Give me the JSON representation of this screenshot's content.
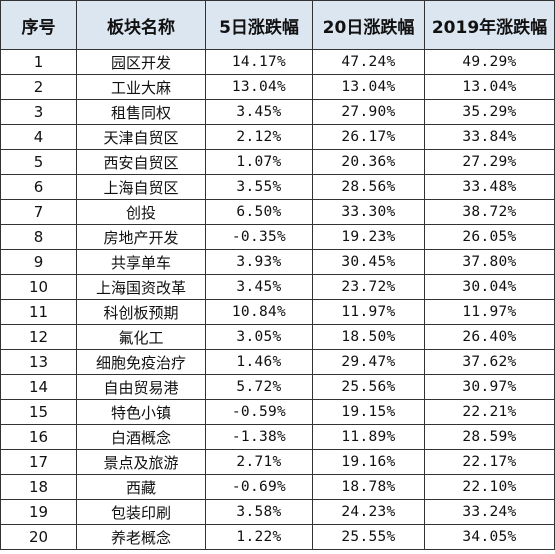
{
  "headers": [
    "序号",
    "板块名称",
    "5日涨跌幅",
    "20日涨跌幅",
    "2019年涨跌幅"
  ],
  "rows": [
    {
      "no": "1",
      "name": "园区开发",
      "d5": "14.17%",
      "d20": "47.24%",
      "y2019": "49.29%"
    },
    {
      "no": "2",
      "name": "工业大麻",
      "d5": "13.04%",
      "d20": "13.04%",
      "y2019": "13.04%"
    },
    {
      "no": "3",
      "name": "租售同权",
      "d5": "3.45%",
      "d20": "27.90%",
      "y2019": "35.29%"
    },
    {
      "no": "4",
      "name": "天津自贸区",
      "d5": "2.12%",
      "d20": "26.17%",
      "y2019": "33.84%"
    },
    {
      "no": "5",
      "name": "西安自贸区",
      "d5": "1.07%",
      "d20": "20.36%",
      "y2019": "27.29%"
    },
    {
      "no": "6",
      "name": "上海自贸区",
      "d5": "3.55%",
      "d20": "28.56%",
      "y2019": "33.48%"
    },
    {
      "no": "7",
      "name": "创投",
      "d5": "6.50%",
      "d20": "33.30%",
      "y2019": "38.72%"
    },
    {
      "no": "8",
      "name": "房地产开发",
      "d5": "-0.35%",
      "d20": "19.23%",
      "y2019": "26.05%"
    },
    {
      "no": "9",
      "name": "共享单车",
      "d5": "3.93%",
      "d20": "30.45%",
      "y2019": "37.80%"
    },
    {
      "no": "10",
      "name": "上海国资改革",
      "d5": "3.45%",
      "d20": "23.72%",
      "y2019": "30.04%"
    },
    {
      "no": "11",
      "name": "科创板预期",
      "d5": "10.84%",
      "d20": "11.97%",
      "y2019": "11.97%"
    },
    {
      "no": "12",
      "name": "氟化工",
      "d5": "3.05%",
      "d20": "18.50%",
      "y2019": "26.40%"
    },
    {
      "no": "13",
      "name": "细胞免疫治疗",
      "d5": "1.46%",
      "d20": "29.47%",
      "y2019": "37.62%"
    },
    {
      "no": "14",
      "name": "自由贸易港",
      "d5": "5.72%",
      "d20": "25.56%",
      "y2019": "30.97%"
    },
    {
      "no": "15",
      "name": "特色小镇",
      "d5": "-0.59%",
      "d20": "19.15%",
      "y2019": "22.21%"
    },
    {
      "no": "16",
      "name": "白酒概念",
      "d5": "-1.38%",
      "d20": "11.89%",
      "y2019": "28.59%"
    },
    {
      "no": "17",
      "name": "景点及旅游",
      "d5": "2.71%",
      "d20": "19.16%",
      "y2019": "22.17%"
    },
    {
      "no": "18",
      "name": "西藏",
      "d5": "-0.69%",
      "d20": "18.78%",
      "y2019": "22.10%"
    },
    {
      "no": "19",
      "name": "包装印刷",
      "d5": "3.58%",
      "d20": "24.23%",
      "y2019": "33.24%"
    },
    {
      "no": "20",
      "name": "养老概念",
      "d5": "1.22%",
      "d20": "25.55%",
      "y2019": "34.05%"
    }
  ]
}
